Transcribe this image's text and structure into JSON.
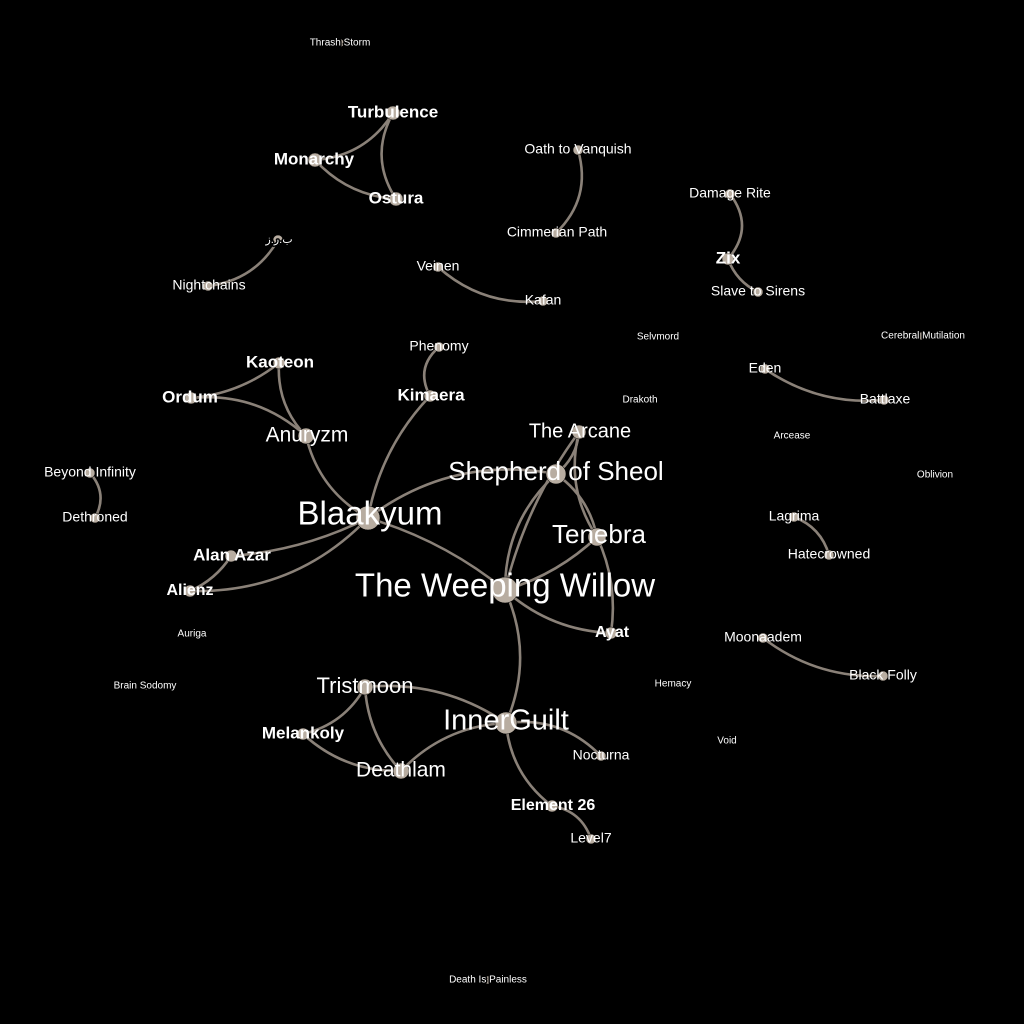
{
  "graph": {
    "nodes": [
      {
        "id": "weeping-willow",
        "label": "The Weeping Willow"
      },
      {
        "id": "blaakyum",
        "label": "Blaakyum"
      },
      {
        "id": "innerguilt",
        "label": "InnerGuilt"
      },
      {
        "id": "shepherd",
        "label": "Shepherd of Sheol"
      },
      {
        "id": "tenebra",
        "label": "Tenebra"
      },
      {
        "id": "arcane",
        "label": "The Arcane"
      },
      {
        "id": "ayat",
        "label": "Ayat"
      },
      {
        "id": "anuryzm",
        "label": "Anuryzm"
      },
      {
        "id": "kaoteon",
        "label": "Kaoteon"
      },
      {
        "id": "ordum",
        "label": "Ordum"
      },
      {
        "id": "kimaera",
        "label": "Kimaera"
      },
      {
        "id": "phenomy",
        "label": "Phenomy"
      },
      {
        "id": "alan-azar",
        "label": "Alan Azar"
      },
      {
        "id": "alienz",
        "label": "Alienz"
      },
      {
        "id": "tristmoon",
        "label": "Tristmoon"
      },
      {
        "id": "melankoly",
        "label": "Melankoly"
      },
      {
        "id": "deathlam",
        "label": "Deathlam"
      },
      {
        "id": "nocturna",
        "label": "Nocturna"
      },
      {
        "id": "element26",
        "label": "Element 26"
      },
      {
        "id": "level7",
        "label": "Level7"
      },
      {
        "id": "turbulence",
        "label": "Turbulence"
      },
      {
        "id": "monarchy",
        "label": "Monarchy"
      },
      {
        "id": "ostura",
        "label": "Ostura"
      },
      {
        "id": "oath",
        "label": "Oath to Vanquish"
      },
      {
        "id": "cimmerian",
        "label": "Cimmerian Path"
      },
      {
        "id": "damage-rite",
        "label": "Damage Rite"
      },
      {
        "id": "zix",
        "label": "Zix"
      },
      {
        "id": "slave-sirens",
        "label": "Slave to Sirens"
      },
      {
        "id": "arabic",
        "label": "ب.ر.ز"
      },
      {
        "id": "nightchains",
        "label": "Nightchains"
      },
      {
        "id": "veinen",
        "label": "Veinen"
      },
      {
        "id": "kafan",
        "label": "Kafan"
      },
      {
        "id": "eden",
        "label": "Eden"
      },
      {
        "id": "battlaxe",
        "label": "Battlaxe"
      },
      {
        "id": "lagrima",
        "label": "Lagrima"
      },
      {
        "id": "hatecrowned",
        "label": "Hatecrowned"
      },
      {
        "id": "moonaadem",
        "label": "Moonaadem"
      },
      {
        "id": "black-folly",
        "label": "Black Folly"
      },
      {
        "id": "beyond-infinity",
        "label": "Beyond Infinity"
      },
      {
        "id": "dethroned",
        "label": "Dethroned"
      },
      {
        "id": "thrash-storm",
        "label": "Thrash Storm"
      },
      {
        "id": "selvmord",
        "label": "Selvmord"
      },
      {
        "id": "cerebral",
        "label": "Cerebral Mutilation"
      },
      {
        "id": "drakoth",
        "label": "Drakoth"
      },
      {
        "id": "arcease",
        "label": "Arcease"
      },
      {
        "id": "oblivion",
        "label": "Oblivion"
      },
      {
        "id": "auriga",
        "label": "Auriga"
      },
      {
        "id": "brain-sodomy",
        "label": "Brain Sodomy"
      },
      {
        "id": "hemacy",
        "label": "Hemacy"
      },
      {
        "id": "void",
        "label": "Void"
      },
      {
        "id": "death-painless",
        "label": "Death Is Painless"
      }
    ],
    "edges": [
      [
        "weeping-willow",
        "blaakyum"
      ],
      [
        "weeping-willow",
        "shepherd"
      ],
      [
        "weeping-willow",
        "arcane"
      ],
      [
        "weeping-willow",
        "tenebra"
      ],
      [
        "weeping-willow",
        "ayat"
      ],
      [
        "weeping-willow",
        "innerguilt"
      ],
      [
        "blaakyum",
        "shepherd"
      ],
      [
        "blaakyum",
        "anuryzm"
      ],
      [
        "blaakyum",
        "kimaera"
      ],
      [
        "blaakyum",
        "alan-azar"
      ],
      [
        "blaakyum",
        "alienz"
      ],
      [
        "shepherd",
        "arcane"
      ],
      [
        "shepherd",
        "tenebra"
      ],
      [
        "tenebra",
        "arcane"
      ],
      [
        "tenebra",
        "ayat"
      ],
      [
        "anuryzm",
        "kaoteon"
      ],
      [
        "anuryzm",
        "ordum"
      ],
      [
        "kaoteon",
        "ordum"
      ],
      [
        "kimaera",
        "phenomy"
      ],
      [
        "alan-azar",
        "alienz"
      ],
      [
        "innerguilt",
        "tristmoon"
      ],
      [
        "innerguilt",
        "deathlam"
      ],
      [
        "innerguilt",
        "nocturna"
      ],
      [
        "innerguilt",
        "element26"
      ],
      [
        "tristmoon",
        "melankoly"
      ],
      [
        "tristmoon",
        "deathlam"
      ],
      [
        "melankoly",
        "deathlam"
      ],
      [
        "element26",
        "level7"
      ],
      [
        "turbulence",
        "monarchy"
      ],
      [
        "turbulence",
        "ostura"
      ],
      [
        "monarchy",
        "ostura"
      ],
      [
        "oath",
        "cimmerian"
      ],
      [
        "damage-rite",
        "zix"
      ],
      [
        "zix",
        "slave-sirens"
      ],
      [
        "arabic",
        "nightchains"
      ],
      [
        "veinen",
        "kafan"
      ],
      [
        "eden",
        "battlaxe"
      ],
      [
        "lagrima",
        "hatecrowned"
      ],
      [
        "moonaadem",
        "black-folly"
      ],
      [
        "beyond-infinity",
        "dethroned"
      ]
    ]
  },
  "colors": {
    "background": "#000000",
    "edge": "#8a8178",
    "node": "#b8ada1",
    "label": "#ffffff"
  }
}
